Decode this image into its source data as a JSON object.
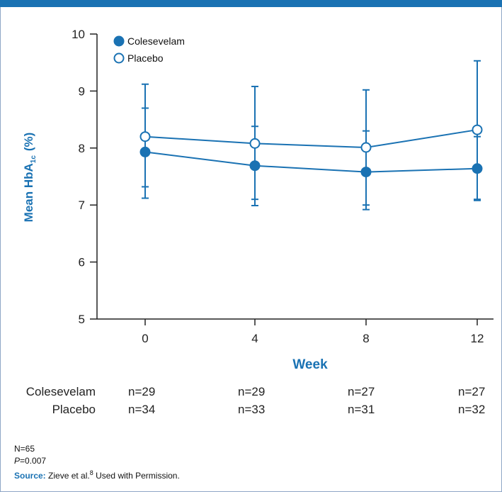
{
  "chart_data": {
    "type": "line",
    "xlabel": "Week",
    "ylabel_main": "Mean HbA",
    "ylabel_sub": "1c",
    "ylabel_unit": "(%)",
    "categories": [
      "0",
      "4",
      "8",
      "12"
    ],
    "yticks": [
      "5",
      "6",
      "7",
      "8",
      "9",
      "10"
    ],
    "ylim": [
      5,
      10
    ],
    "legend_position": "top-left",
    "grid": false,
    "series": [
      {
        "name": "Colesevelam",
        "marker": "filled-circle",
        "color": "#1a72b3",
        "values": [
          7.93,
          7.69,
          7.58,
          7.64
        ],
        "err_low": [
          7.12,
          6.99,
          6.92,
          7.08
        ],
        "err_high": [
          8.7,
          8.38,
          8.3,
          8.2
        ]
      },
      {
        "name": "Placebo",
        "marker": "open-circle",
        "color": "#1a72b3",
        "values": [
          8.2,
          8.08,
          8.01,
          8.32
        ],
        "err_low": [
          7.32,
          7.1,
          7.0,
          7.1
        ],
        "err_high": [
          9.12,
          9.08,
          9.02,
          9.53
        ]
      }
    ]
  },
  "n_table": {
    "rows": [
      {
        "label": "Colesevelam",
        "values": [
          "n=29",
          "n=29",
          "n=27",
          "n=27"
        ]
      },
      {
        "label": "Placebo",
        "values": [
          "n=34",
          "n=33",
          "n=31",
          "n=32"
        ]
      }
    ]
  },
  "notes": {
    "total_n": "N=65",
    "p_label": "P",
    "p_value": "=0.007",
    "source_label": "Source:",
    "source_text": "Zieve et al.",
    "source_ref": "8",
    "source_tail": "Used with Permission."
  },
  "colors": {
    "accent": "#1a72b3",
    "frame_border": "#8fa6c6",
    "axis": "#222222"
  }
}
